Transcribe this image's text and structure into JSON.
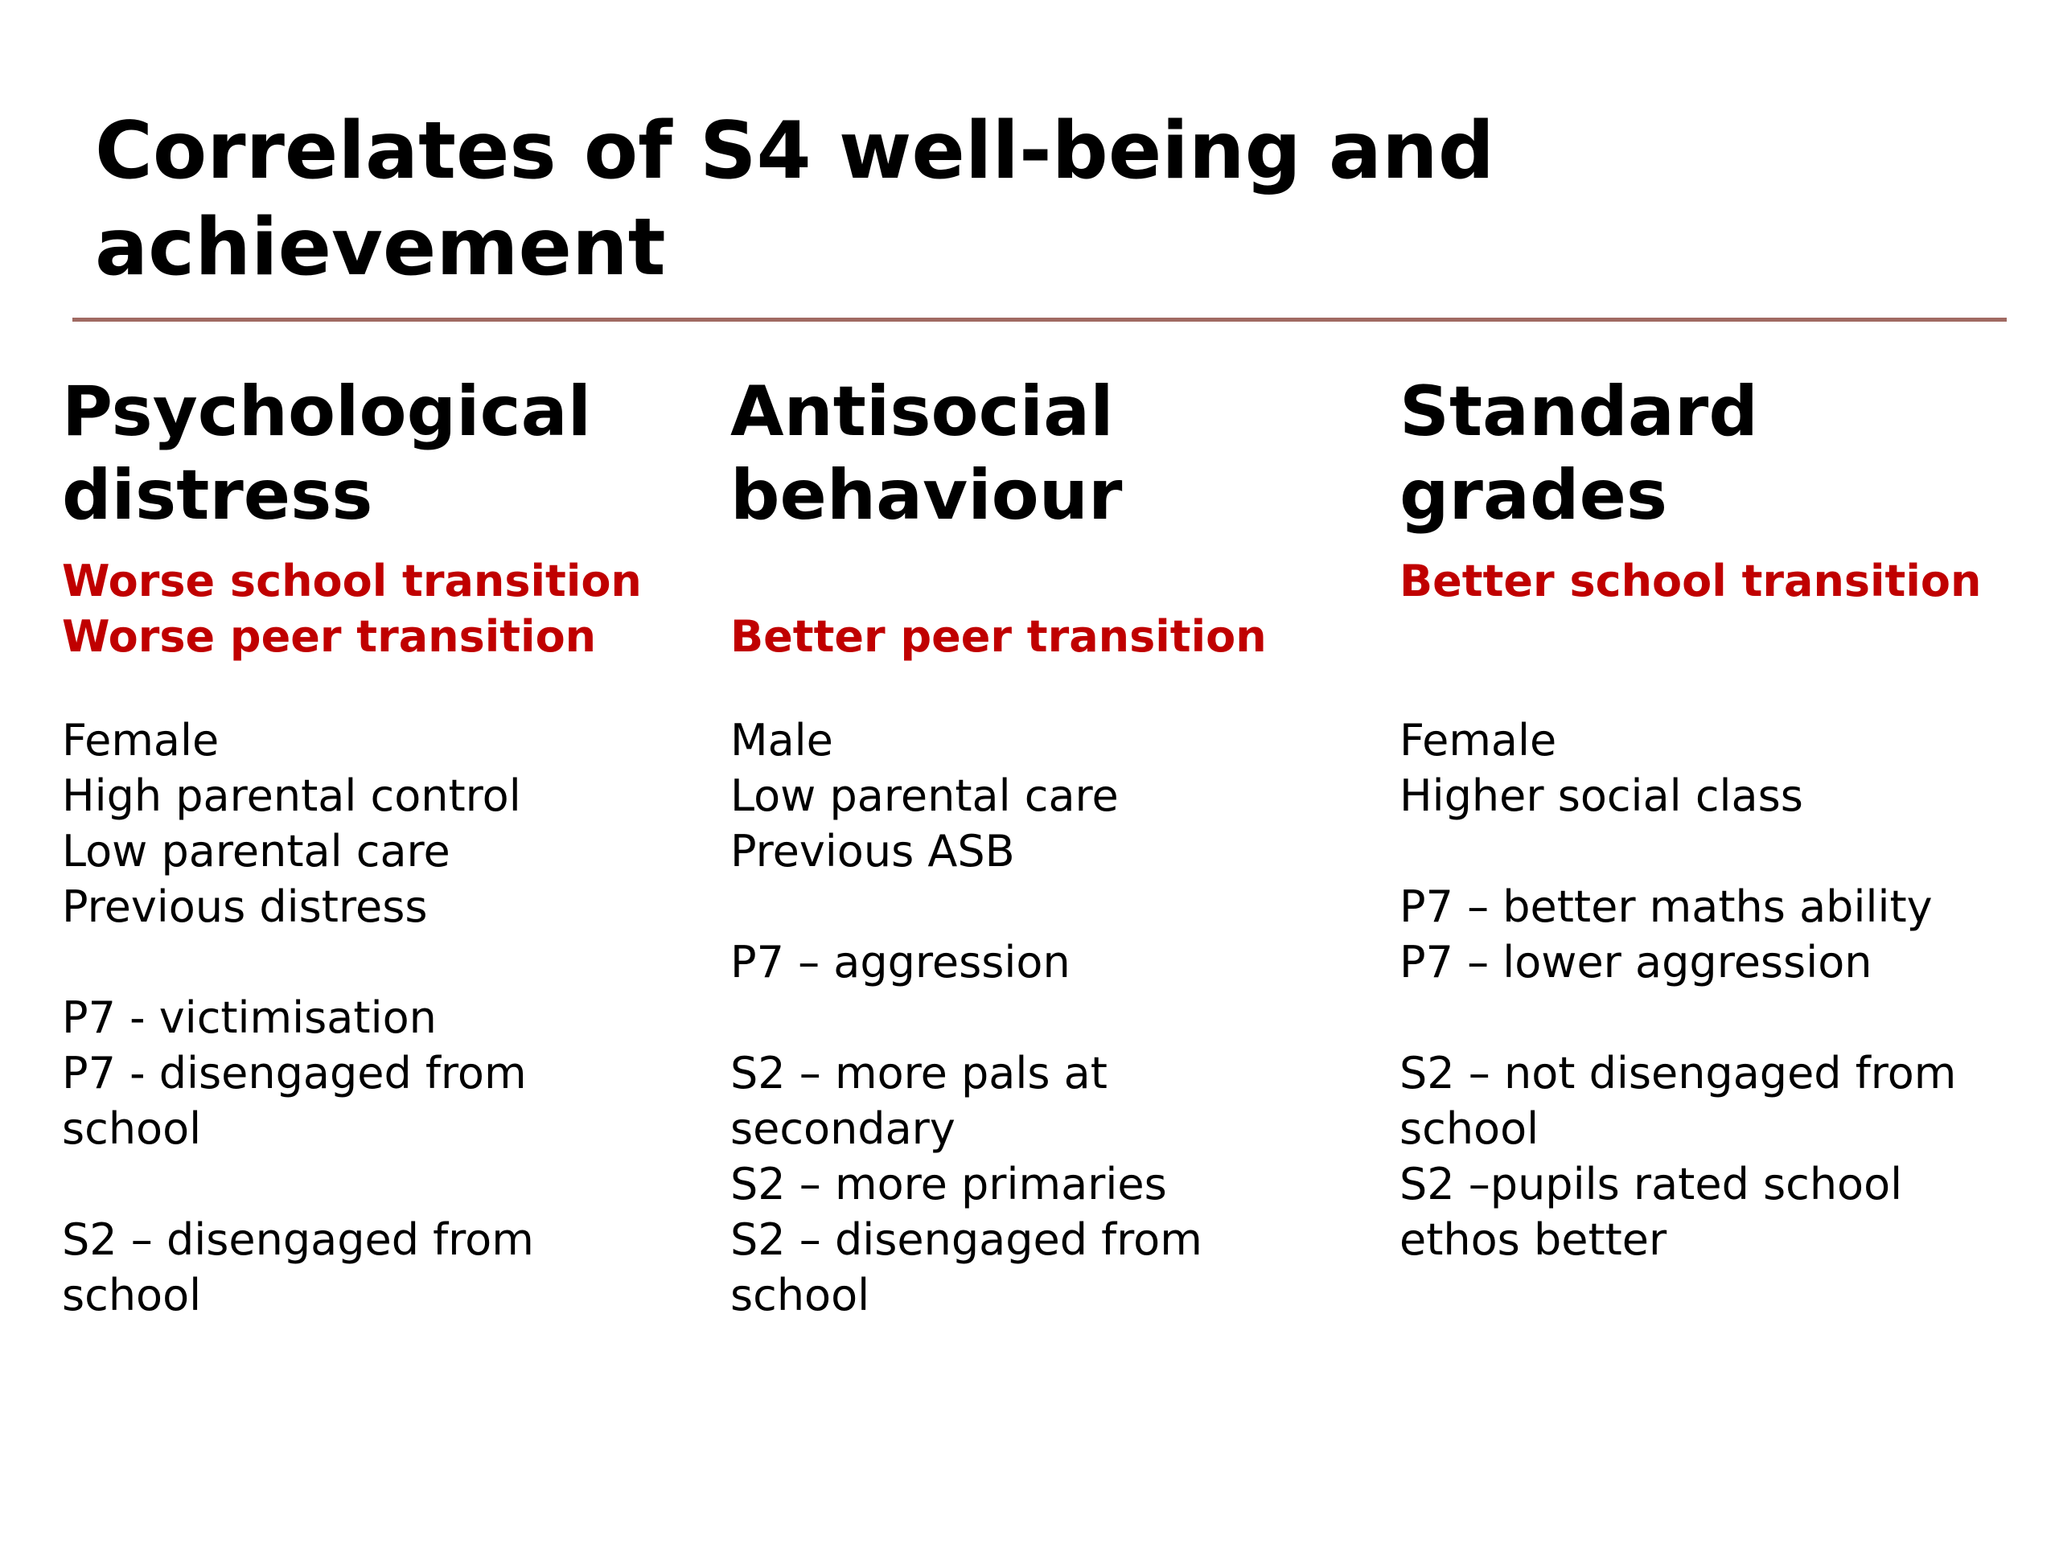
{
  "slide": {
    "title": "Correlates of S4 well-being and\nachievement"
  },
  "columns": [
    {
      "heading": "Psychological\ndistress",
      "transitions": [
        "Worse school transition",
        "Worse peer transition"
      ],
      "factors": [
        "Female",
        "High parental control",
        "Low parental care",
        "Previous distress",
        "",
        "P7 - victimisation",
        "P7 - disengaged from",
        "school",
        "",
        "S2 – disengaged from",
        "school"
      ]
    },
    {
      "heading": "Antisocial\nbehaviour",
      "transitions": [
        "",
        "Better peer transition"
      ],
      "factors": [
        "Male",
        "Low parental care",
        "Previous ASB",
        "",
        "P7 – aggression",
        "",
        "S2 – more pals at",
        "secondary",
        "S2 – more primaries",
        "S2 – disengaged from",
        "school"
      ]
    },
    {
      "heading": "Standard\ngrades",
      "transitions": [
        "Better school transition",
        ""
      ],
      "factors": [
        "Female",
        "Higher social class",
        "",
        "P7 – better maths ability",
        "P7 – lower aggression",
        "",
        "S2 – not disengaged from",
        "school",
        "S2 –pupils rated school",
        "ethos better"
      ]
    }
  ],
  "colors": {
    "accent": "#c00000",
    "divider": "#a06a62",
    "text": "#000000",
    "background": "#ffffff"
  }
}
